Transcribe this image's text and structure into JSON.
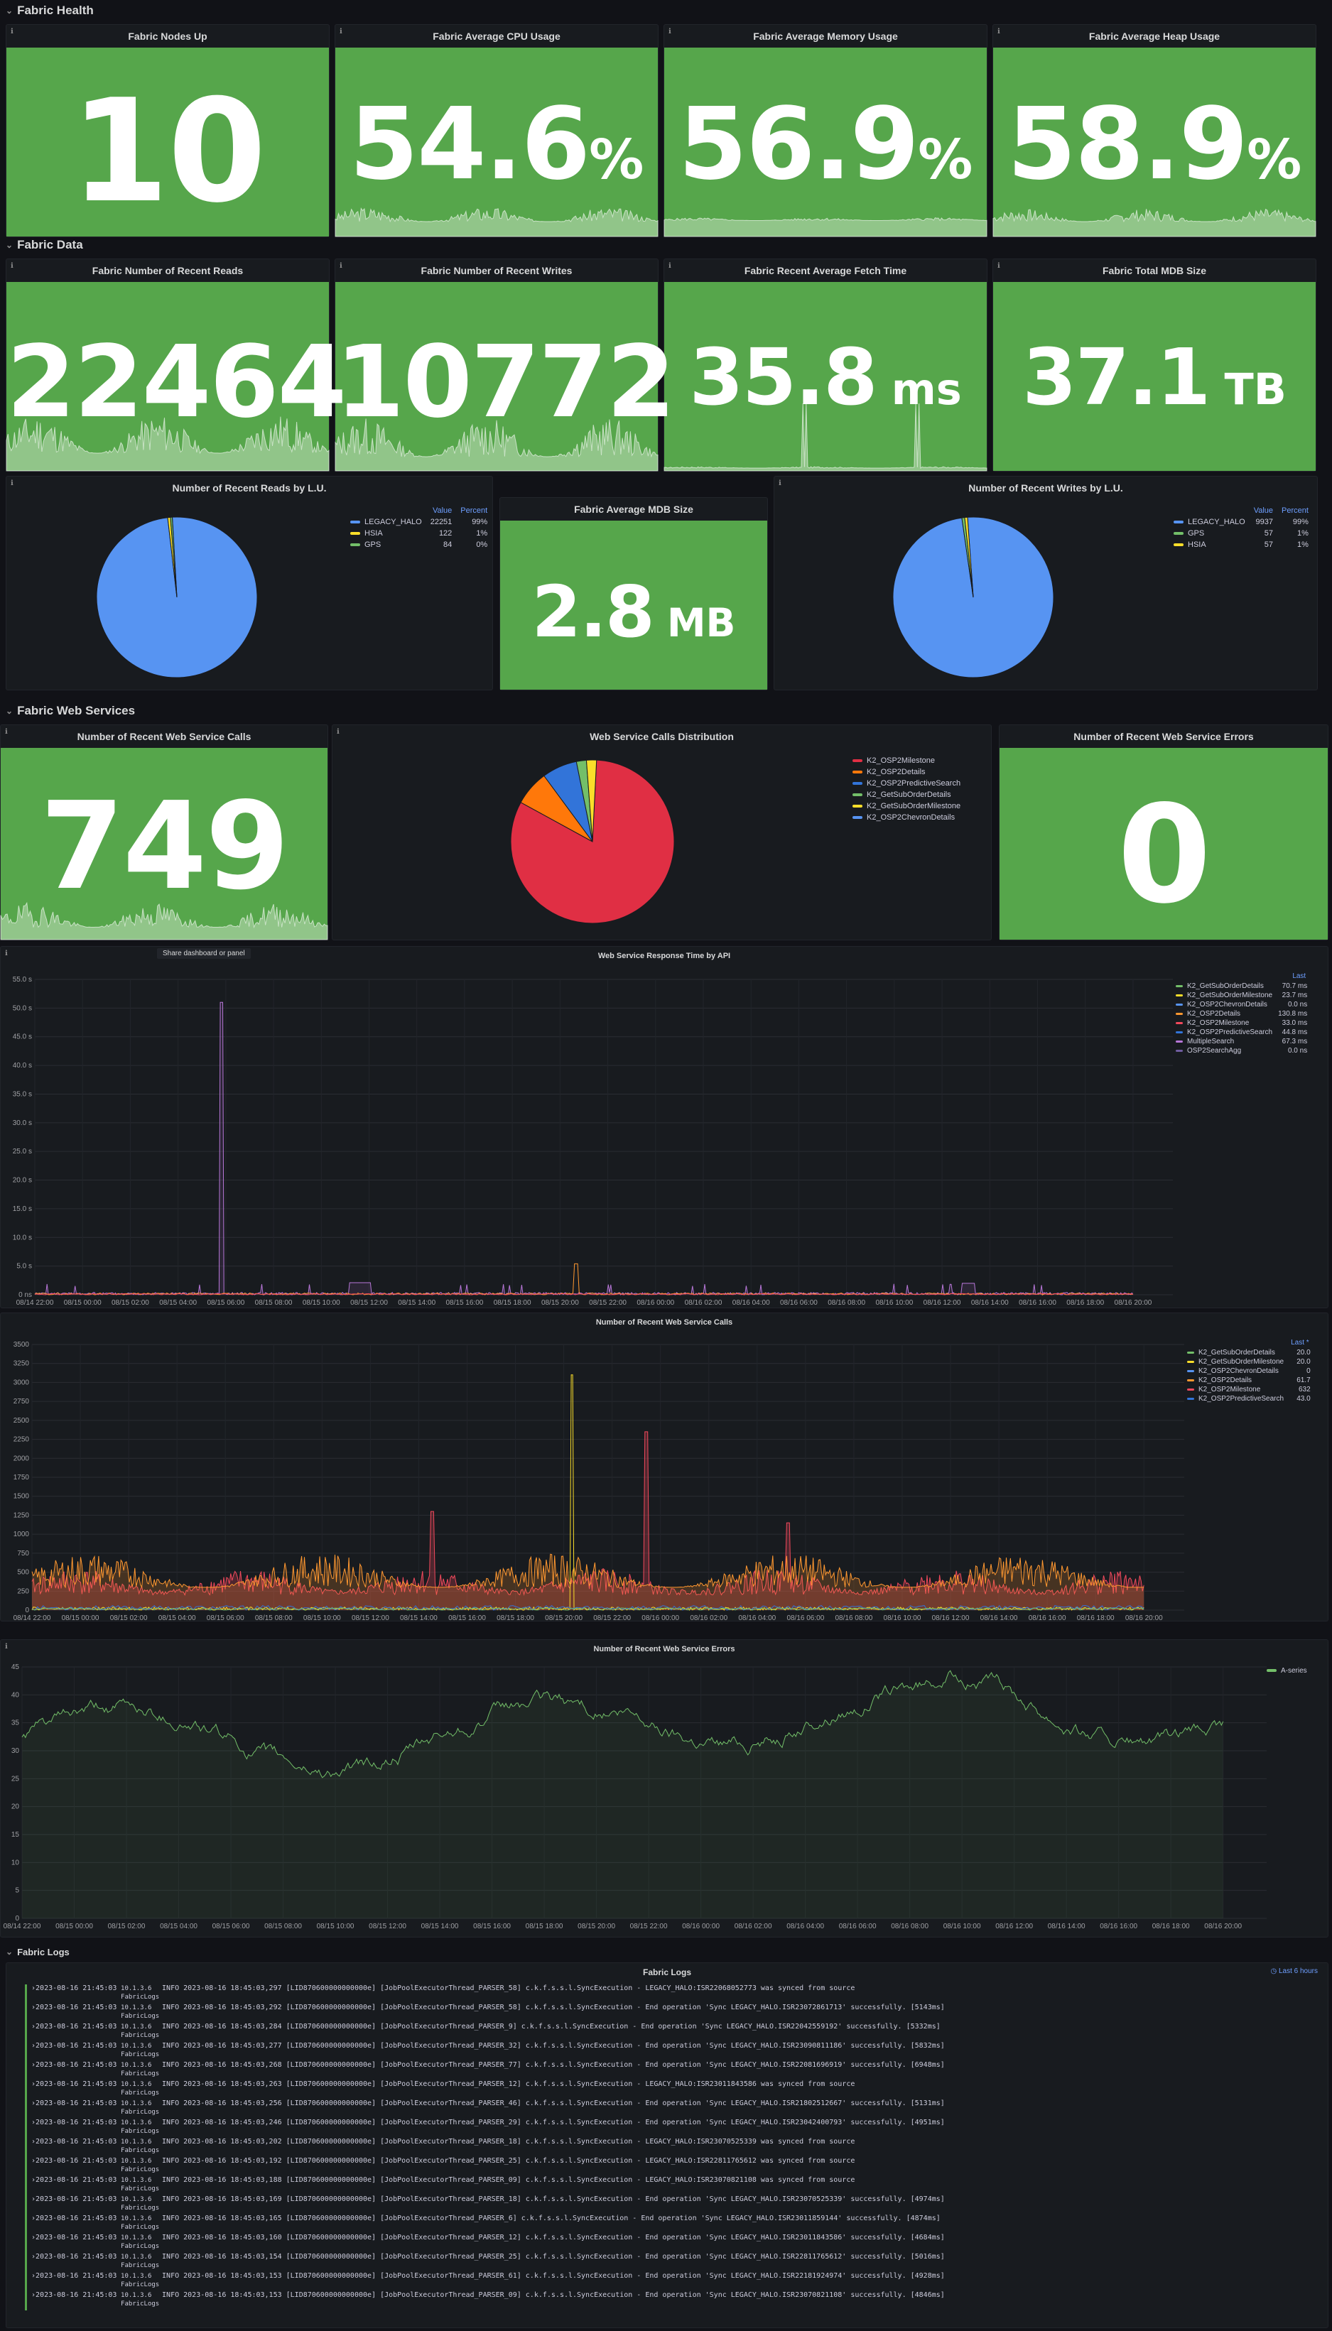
{
  "rows": {
    "health": "Fabric Health",
    "data": "Fabric Data",
    "web": "Fabric Web Services",
    "logs": "Fabric Logs"
  },
  "info_icon": "info-icon",
  "stats": {
    "nodes": {
      "title": "Fabric Nodes Up",
      "value": "10",
      "unit": ""
    },
    "cpu": {
      "title": "Fabric Average CPU Usage",
      "value": "54.6",
      "unit": "%"
    },
    "mem": {
      "title": "Fabric Average Memory Usage",
      "value": "56.9",
      "unit": "%"
    },
    "heap": {
      "title": "Fabric Average Heap Usage",
      "value": "58.9",
      "unit": "%"
    },
    "reads": {
      "title": "Fabric Number of Recent Reads",
      "value": "22464",
      "unit": ""
    },
    "writes": {
      "title": "Fabric Number of Recent Writes",
      "value": "10772",
      "unit": ""
    },
    "fetch": {
      "title": "Fabric Recent Average Fetch Time",
      "value": "35.8",
      "unit": " ms"
    },
    "mdb": {
      "title": "Fabric Total MDB Size",
      "value": "37.1",
      "unit": " TB"
    },
    "avgmdb": {
      "title": "Fabric Average MDB Size",
      "value": "2.8",
      "unit": " MB"
    },
    "wscalls": {
      "title": "Number of Recent Web Service Calls",
      "value": "749",
      "unit": ""
    },
    "wserrors": {
      "title": "Number of Recent Web Service Errors",
      "value": "0",
      "unit": ""
    }
  },
  "pie_reads": {
    "title": "Number of Recent Reads by L.U.",
    "col_value": "Value",
    "col_percent": "Percent",
    "items": [
      {
        "name": "LEGACY_HALO",
        "value": "22251",
        "pct": "99%",
        "color": "#5794f2"
      },
      {
        "name": "HSIA",
        "value": "122",
        "pct": "1%",
        "color": "#fade2a"
      },
      {
        "name": "GPS",
        "value": "84",
        "pct": "0%",
        "color": "#73bf69"
      }
    ]
  },
  "pie_writes": {
    "title": "Number of Recent Writes by L.U.",
    "col_value": "Value",
    "col_percent": "Percent",
    "items": [
      {
        "name": "LEGACY_HALO",
        "value": "9937",
        "pct": "99%",
        "color": "#5794f2"
      },
      {
        "name": "GPS",
        "value": "57",
        "pct": "1%",
        "color": "#73bf69"
      },
      {
        "name": "HSIA",
        "value": "57",
        "pct": "1%",
        "color": "#fade2a"
      }
    ]
  },
  "pie_ws": {
    "title": "Web Service Calls Distribution",
    "items": [
      {
        "name": "K2_OSP2Milestone",
        "pct": "83%",
        "color": "#e02f44"
      },
      {
        "name": "K2_OSP2Details",
        "pct": "7%",
        "color": "#ff780a"
      },
      {
        "name": "K2_OSP2PredictiveSearch",
        "pct": "7%",
        "color": "#3274d9"
      },
      {
        "name": "K2_GetSubOrderDetails",
        "pct": "2%",
        "color": "#73bf69"
      },
      {
        "name": "K2_GetSubOrderMilestone",
        "pct": "2%",
        "color": "#fade2a"
      },
      {
        "name": "K2_OSP2ChevronDetails",
        "pct": "0%",
        "color": "#5794f2"
      }
    ]
  },
  "tooltip": "Share dashboard or panel",
  "x_ticks": [
    "08/14 22:00",
    "08/15 00:00",
    "08/15 02:00",
    "08/15 04:00",
    "08/15 06:00",
    "08/15 08:00",
    "08/15 10:00",
    "08/15 12:00",
    "08/15 14:00",
    "08/15 16:00",
    "08/15 18:00",
    "08/15 20:00",
    "08/15 22:00",
    "08/16 00:00",
    "08/16 02:00",
    "08/16 04:00",
    "08/16 06:00",
    "08/16 08:00",
    "08/16 10:00",
    "08/16 12:00",
    "08/16 14:00",
    "08/16 16:00",
    "08/16 18:00",
    "08/16 20:00"
  ],
  "resp": {
    "title": "Web Service Response Time by API",
    "legend_header": "Last",
    "y_ticks": [
      "0 ns",
      "5.0 s",
      "10.0 s",
      "15.0 s",
      "20.0 s",
      "25.0 s",
      "30.0 s",
      "35.0 s",
      "40.0 s",
      "45.0 s",
      "50.0 s",
      "55.0 s"
    ],
    "series": [
      {
        "name": "K2_GetSubOrderDetails",
        "last": "70.7 ms",
        "color": "#73bf69"
      },
      {
        "name": "K2_GetSubOrderMilestone",
        "last": "23.7 ms",
        "color": "#fade2a"
      },
      {
        "name": "K2_OSP2ChevronDetails",
        "last": "0.0 ns",
        "color": "#5794f2"
      },
      {
        "name": "K2_OSP2Details",
        "last": "130.8 ms",
        "color": "#ff9830"
      },
      {
        "name": "K2_OSP2Milestone",
        "last": "33.0 ms",
        "color": "#f2495c"
      },
      {
        "name": "K2_OSP2PredictiveSearch",
        "last": "44.8 ms",
        "color": "#3274d9"
      },
      {
        "name": "MultipleSearch",
        "last": "67.3 ms",
        "color": "#b877d9"
      },
      {
        "name": "OSP2SearchAgg",
        "last": "0.0 ns",
        "color": "#705da0"
      }
    ]
  },
  "calls": {
    "title": "Number of Recent Web Service Calls",
    "legend_header": "Last *",
    "y_ticks": [
      "0",
      "250",
      "500",
      "750",
      "1000",
      "1250",
      "1500",
      "1750",
      "2000",
      "2250",
      "2500",
      "2750",
      "3000",
      "3250",
      "3500"
    ],
    "series": [
      {
        "name": "K2_GetSubOrderDetails",
        "last": "20.0",
        "color": "#73bf69"
      },
      {
        "name": "K2_GetSubOrderMilestone",
        "last": "20.0",
        "color": "#fade2a"
      },
      {
        "name": "K2_OSP2ChevronDetails",
        "last": "0",
        "color": "#5794f2"
      },
      {
        "name": "K2_OSP2Details",
        "last": "61.7",
        "color": "#ff9830"
      },
      {
        "name": "K2_OSP2Milestone",
        "last": "632",
        "color": "#f2495c"
      },
      {
        "name": "K2_OSP2PredictiveSearch",
        "last": "43.0",
        "color": "#3274d9"
      }
    ]
  },
  "errors": {
    "title": "Number of Recent Web Service Errors",
    "legend": "A-series",
    "y_ticks": [
      "0",
      "5",
      "10",
      "15",
      "20",
      "25",
      "30",
      "35",
      "40",
      "45"
    ]
  },
  "chart_data": [
    {
      "type": "pie",
      "title": "Number of Recent Reads by L.U.",
      "categories": [
        "LEGACY_HALO",
        "HSIA",
        "GPS"
      ],
      "values": [
        22251,
        122,
        84
      ]
    },
    {
      "type": "pie",
      "title": "Number of Recent Writes by L.U.",
      "categories": [
        "LEGACY_HALO",
        "GPS",
        "HSIA"
      ],
      "values": [
        9937,
        57,
        57
      ]
    },
    {
      "type": "pie",
      "title": "Web Service Calls Distribution",
      "categories": [
        "K2_OSP2Milestone",
        "K2_OSP2Details",
        "K2_OSP2PredictiveSearch",
        "K2_GetSubOrderDetails",
        "K2_GetSubOrderMilestone",
        "K2_OSP2ChevronDetails"
      ],
      "values": [
        83,
        7,
        7,
        2,
        2,
        0
      ]
    },
    {
      "type": "line",
      "title": "Web Service Response Time by API",
      "ylabel": "",
      "ylim": [
        0,
        55
      ],
      "x": [
        "08/14 22:00",
        "08/16 21:00"
      ],
      "series": [
        {
          "name": "MultipleSearch",
          "peak_value_s": 51
        },
        {
          "name": "K2_OSP2Details",
          "last": "130.8 ms"
        }
      ]
    },
    {
      "type": "line",
      "title": "Number of Recent Web Service Calls",
      "ylim": [
        0,
        3500
      ],
      "series": [
        {
          "name": "K2_GetSubOrderMilestone",
          "peak": 3100
        },
        {
          "name": "K2_OSP2Milestone",
          "peak": 2350
        },
        {
          "name": "K2_OSP2Details",
          "typical": 500
        }
      ]
    },
    {
      "type": "area",
      "title": "Number of Recent Web Service Errors",
      "ylim": [
        0,
        45
      ],
      "series": [
        {
          "name": "A-series",
          "min": 27,
          "max": 41
        }
      ]
    }
  ],
  "logs": {
    "title": "Fabric Logs",
    "time_range": "Last 6 hours",
    "host": "10.1.3.6",
    "host2": "FabricLogs",
    "lines": [
      {
        "ts": "2023-08-16 21:45:03",
        "msg": "INFO  2023-08-16 18:45:03,297 [LID870600000000000e] [JobPoolExecutorThread_PARSER_58] c.k.f.s.s.l.SyncExecution - LEGACY_HALO:ISR22068052773 was synced from source"
      },
      {
        "ts": "2023-08-16 21:45:03",
        "msg": "INFO  2023-08-16 18:45:03,292 [LID870600000000000e] [JobPoolExecutorThread_PARSER_58] c.k.f.s.s.l.SyncExecution - End operation 'Sync LEGACY_HALO.ISR23072861713' successfully.  [5143ms]"
      },
      {
        "ts": "2023-08-16 21:45:03",
        "msg": "INFO  2023-08-16 18:45:03,284 [LID870600000000000e] [JobPoolExecutorThread_PARSER_9] c.k.f.s.s.l.SyncExecution - End operation 'Sync LEGACY_HALO.ISR22042559192' successfully.  [5332ms]"
      },
      {
        "ts": "2023-08-16 21:45:03",
        "msg": "INFO  2023-08-16 18:45:03,277 [LID870600000000000e] [JobPoolExecutorThread_PARSER_32] c.k.f.s.s.l.SyncExecution - End operation 'Sync LEGACY_HALO.ISR23090811186' successfully.  [5832ms]"
      },
      {
        "ts": "2023-08-16 21:45:03",
        "msg": "INFO  2023-08-16 18:45:03,268 [LID870600000000000e] [JobPoolExecutorThread_PARSER_77] c.k.f.s.s.l.SyncExecution - End operation 'Sync LEGACY_HALO.ISR22081696919' successfully.  [6948ms]"
      },
      {
        "ts": "2023-08-16 21:45:03",
        "msg": "INFO  2023-08-16 18:45:03,263 [LID870600000000000e] [JobPoolExecutorThread_PARSER_12] c.k.f.s.s.l.SyncExecution - LEGACY_HALO:ISR23011843586 was synced from source"
      },
      {
        "ts": "2023-08-16 21:45:03",
        "msg": "INFO  2023-08-16 18:45:03,256 [LID870600000000000e] [JobPoolExecutorThread_PARSER_46] c.k.f.s.s.l.SyncExecution - End operation 'Sync LEGACY_HALO.ISR21802512667' successfully.  [5131ms]"
      },
      {
        "ts": "2023-08-16 21:45:03",
        "msg": "INFO  2023-08-16 18:45:03,246 [LID870600000000000e] [JobPoolExecutorThread_PARSER_29] c.k.f.s.s.l.SyncExecution - End operation 'Sync LEGACY_HALO.ISR23042400793' successfully.  [4951ms]"
      },
      {
        "ts": "2023-08-16 21:45:03",
        "msg": "INFO  2023-08-16 18:45:03,202 [LID870600000000000e] [JobPoolExecutorThread_PARSER_18] c.k.f.s.s.l.SyncExecution - LEGACY_HALO:ISR23070525339 was synced from source"
      },
      {
        "ts": "2023-08-16 21:45:03",
        "msg": "INFO  2023-08-16 18:45:03,192 [LID870600000000000e] [JobPoolExecutorThread_PARSER_25] c.k.f.s.s.l.SyncExecution - LEGACY_HALO:ISR22811765612 was synced from source"
      },
      {
        "ts": "2023-08-16 21:45:03",
        "msg": "INFO  2023-08-16 18:45:03,188 [LID870600000000000e] [JobPoolExecutorThread_PARSER_09] c.k.f.s.s.l.SyncExecution - LEGACY_HALO:ISR23070821108 was synced from source"
      },
      {
        "ts": "2023-08-16 21:45:03",
        "msg": "INFO  2023-08-16 18:45:03,169 [LID870600000000000e] [JobPoolExecutorThread_PARSER_18] c.k.f.s.s.l.SyncExecution - End operation 'Sync LEGACY_HALO.ISR23070525339' successfully.  [4974ms]"
      },
      {
        "ts": "2023-08-16 21:45:03",
        "msg": "INFO  2023-08-16 18:45:03,165 [LID870600000000000e] [JobPoolExecutorThread_PARSER_6] c.k.f.s.s.l.SyncExecution - End operation 'Sync LEGACY_HALO.ISR23011859144' successfully.  [4874ms]"
      },
      {
        "ts": "2023-08-16 21:45:03",
        "msg": "INFO  2023-08-16 18:45:03,160 [LID870600000000000e] [JobPoolExecutorThread_PARSER_12] c.k.f.s.s.l.SyncExecution - End operation 'Sync LEGACY_HALO.ISR23011843586' successfully.  [4684ms]"
      },
      {
        "ts": "2023-08-16 21:45:03",
        "msg": "INFO  2023-08-16 18:45:03,154 [LID870600000000000e] [JobPoolExecutorThread_PARSER_25] c.k.f.s.s.l.SyncExecution - End operation 'Sync LEGACY_HALO.ISR22811765612' successfully.  [5016ms]"
      },
      {
        "ts": "2023-08-16 21:45:03",
        "msg": "INFO  2023-08-16 18:45:03,153 [LID870600000000000e] [JobPoolExecutorThread_PARSER_61] c.k.f.s.s.l.SyncExecution - End operation 'Sync LEGACY_HALO.ISR22181924974' successfully.  [4928ms]"
      },
      {
        "ts": "2023-08-16 21:45:03",
        "msg": "INFO  2023-08-16 18:45:03,153 [LID870600000000000e] [JobPoolExecutorThread_PARSER_09] c.k.f.s.s.l.SyncExecution - End operation 'Sync LEGACY_HALO.ISR23070821108' successfully.  [4846ms]"
      }
    ]
  }
}
